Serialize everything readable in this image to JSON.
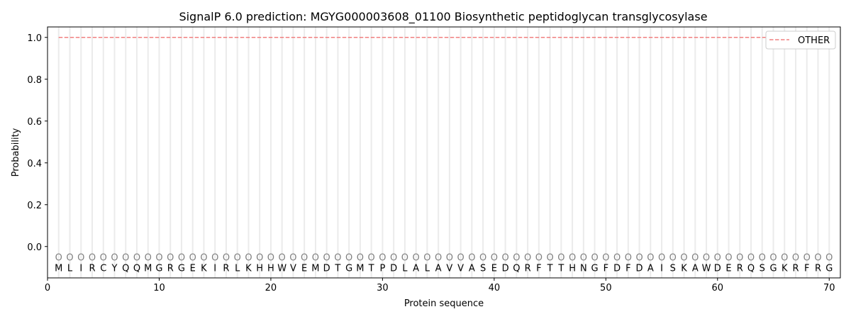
{
  "chart_data": {
    "type": "line",
    "title": "SignalP 6.0 prediction: MGYG000003608_01100 Biosynthetic peptidoglycan transglycosylase",
    "xlabel": "Protein sequence",
    "ylabel": "Probability",
    "xlim": [
      0,
      71
    ],
    "ylim": [
      -0.15,
      1.05
    ],
    "xticks": [
      0,
      10,
      20,
      30,
      40,
      50,
      60,
      70
    ],
    "yticks": [
      0.0,
      0.2,
      0.4,
      0.6,
      0.8,
      1.0
    ],
    "ytick_labels": [
      "0.0",
      "0.2",
      "0.4",
      "0.6",
      "0.8",
      "1.0"
    ],
    "legend_position": "top-right",
    "sequence": [
      "M",
      "L",
      "I",
      "R",
      "C",
      "Y",
      "Q",
      "Q",
      "M",
      "G",
      "R",
      "G",
      "E",
      "K",
      "I",
      "R",
      "L",
      "K",
      "H",
      "H",
      "W",
      "V",
      "E",
      "M",
      "D",
      "T",
      "G",
      "M",
      "T",
      "P",
      "D",
      "L",
      "A",
      "L",
      "A",
      "V",
      "V",
      "A",
      "S",
      "E",
      "D",
      "Q",
      "R",
      "F",
      "T",
      "T",
      "H",
      "N",
      "G",
      "F",
      "D",
      "F",
      "D",
      "A",
      "I",
      "S",
      "K",
      "A",
      "W",
      "D",
      "E",
      "R",
      "Q",
      "S",
      "G",
      "K",
      "R",
      "F",
      "R",
      "G"
    ],
    "per_residue_label": "O",
    "series": [
      {
        "name": "OTHER",
        "color": "#f08080",
        "style": "dashed",
        "x_start": 1,
        "x_end": 70,
        "value": 1.0
      }
    ]
  }
}
